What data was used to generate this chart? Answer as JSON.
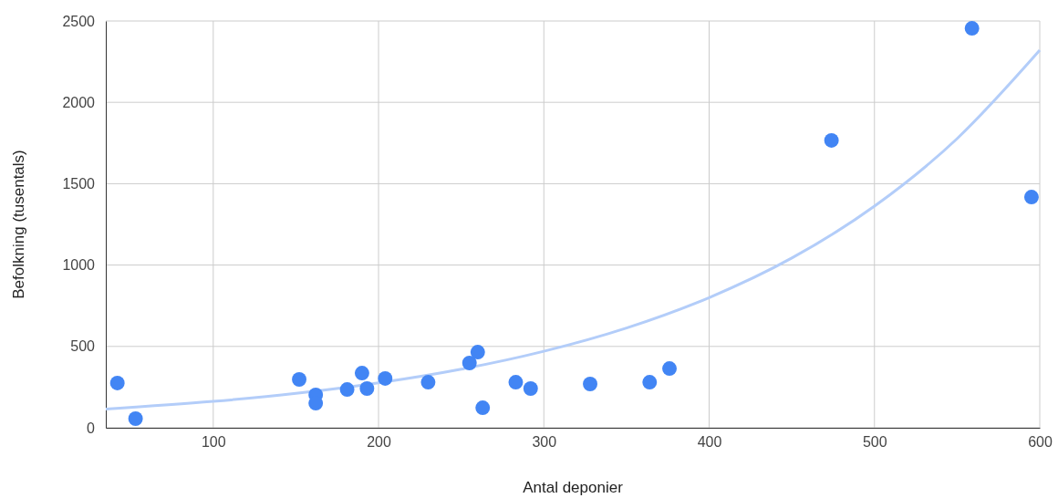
{
  "chart_data": {
    "type": "scatter",
    "xlabel": "Antal deponier",
    "ylabel": "Befolkning (tusentals)",
    "xlim": [
      35,
      600
    ],
    "ylim": [
      0,
      2500
    ],
    "xticks": [
      100,
      200,
      300,
      400,
      500,
      600
    ],
    "yticks": [
      0,
      500,
      1000,
      1500,
      2000,
      2500
    ],
    "grid": true,
    "marker": "circle",
    "series": [
      {
        "color": "#4285f4",
        "x": [
          42,
          53,
          152,
          162,
          162,
          181,
          190,
          193,
          204,
          230,
          255,
          260,
          263,
          283,
          292,
          328,
          364,
          376,
          474,
          559,
          595
        ],
        "values": [
          275,
          56,
          297,
          202,
          151,
          235,
          336,
          241,
          303,
          280,
          398,
          465,
          123,
          280,
          241,
          269,
          280,
          364,
          1766,
          2455,
          1418
        ]
      },
      {
        "type": "line",
        "color": "#b3cdf9",
        "marker": "none",
        "x": [
          35,
          100,
          150,
          200,
          250,
          300,
          350,
          400,
          450,
          500,
          550,
          600
        ],
        "values": [
          115,
          162,
          211,
          276,
          360,
          470,
          613,
          800,
          1043,
          1362,
          1777,
          2320
        ]
      }
    ]
  }
}
